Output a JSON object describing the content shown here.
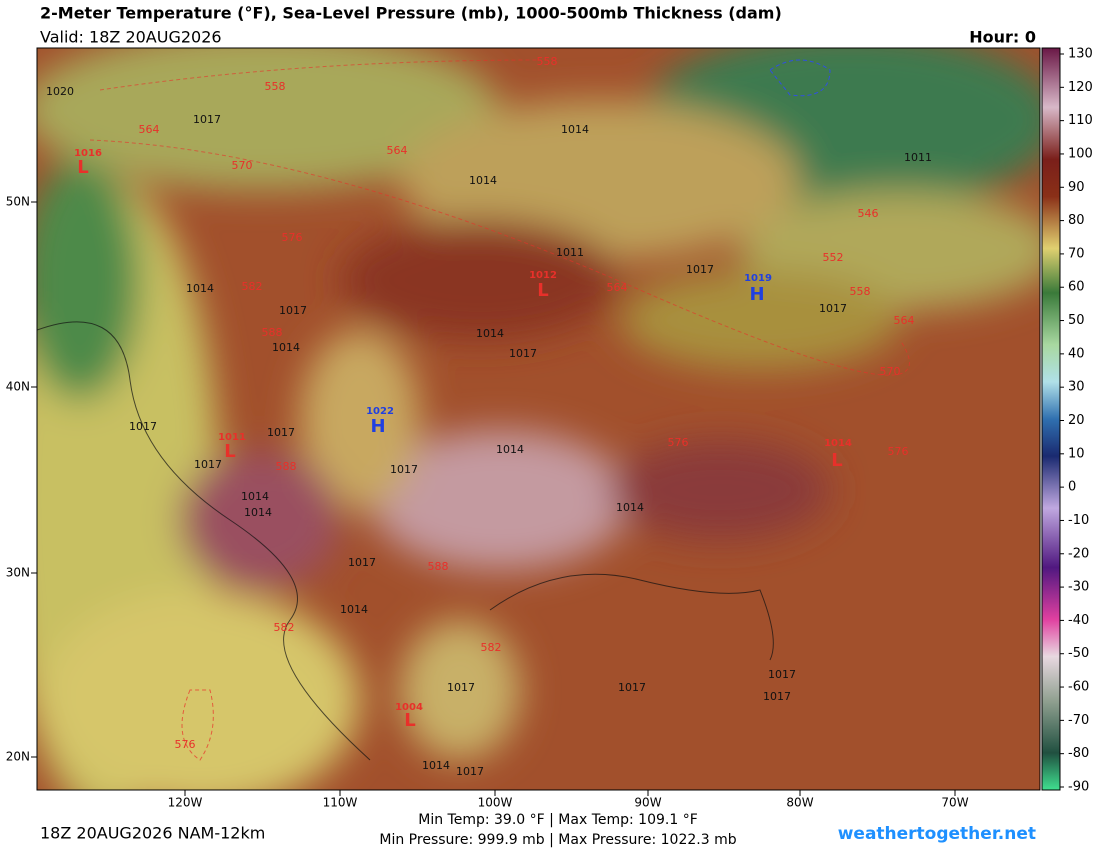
{
  "header": {
    "title": "2-Meter Temperature (°F), Sea-Level Pressure (mb), 1000-500mb Thickness (dam)",
    "valid": "Valid: 18Z 20AUG2026",
    "hour": "Hour: 0"
  },
  "map": {
    "lat_labels": [
      "50N",
      "40N",
      "30N",
      "20N"
    ],
    "lon_labels": [
      "120W",
      "110W",
      "100W",
      "90W",
      "80W",
      "70W"
    ],
    "pressure_labels": [
      "1020",
      "1017",
      "1014",
      "1011",
      "1014",
      "1011",
      "1017",
      "1014",
      "1017",
      "1014",
      "1017",
      "1014",
      "1017",
      "1017",
      "1017",
      "1017",
      "1014",
      "1017",
      "1014",
      "1014",
      "1014",
      "1017",
      "1014",
      "1017",
      "1017",
      "1017",
      "1017",
      "1014",
      "1017"
    ],
    "thickness_labels": [
      "558",
      "564",
      "570",
      "564",
      "576",
      "582",
      "588",
      "564",
      "552",
      "546",
      "558",
      "564",
      "570",
      "576",
      "576",
      "588",
      "588",
      "582",
      "582",
      "576",
      "558"
    ],
    "centers": [
      {
        "letter": "L",
        "pressure": "1016"
      },
      {
        "letter": "L",
        "pressure": "1012"
      },
      {
        "letter": "H",
        "pressure": "1022"
      },
      {
        "letter": "L",
        "pressure": "1011"
      },
      {
        "letter": "L",
        "pressure": "1014"
      },
      {
        "letter": "H",
        "pressure": "1019"
      },
      {
        "letter": "L",
        "pressure": "1004"
      }
    ]
  },
  "colorbar": {
    "ticks": [
      130,
      120,
      110,
      100,
      90,
      80,
      70,
      60,
      50,
      40,
      30,
      20,
      10,
      0,
      -10,
      -20,
      -30,
      -40,
      -50,
      -60,
      -70,
      -80,
      -90
    ]
  },
  "footer": {
    "run": "18Z 20AUG2026 NAM-12km",
    "temps": "Min Temp:  39.0 °F | Max Temp: 109.1 °F",
    "pressures": "Min Pressure: 999.9 mb | Max Pressure: 1022.3 mb",
    "site": "weathertogether.net"
  }
}
